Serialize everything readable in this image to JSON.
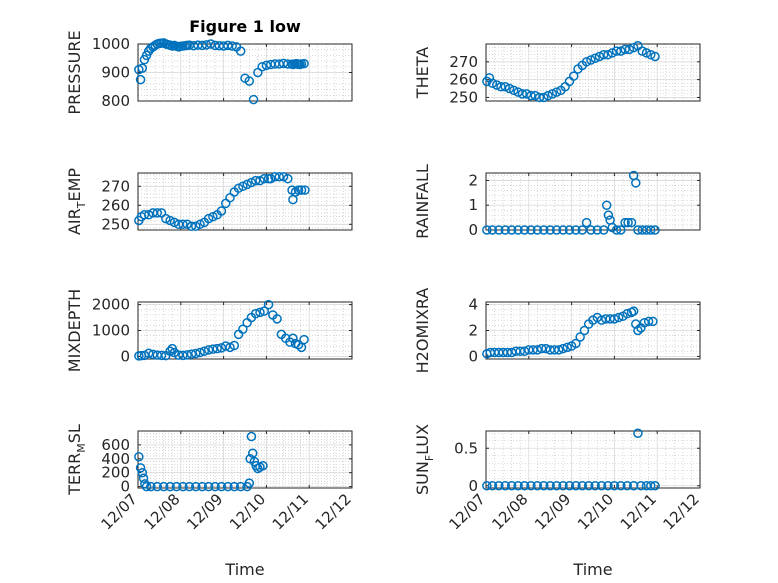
{
  "chart_data": [
    {
      "type": "scatter",
      "title": "Figure 1 low",
      "ylabel_main": "PRESSURE",
      "ylabel_sub": "",
      "ylabel_tail": "",
      "ylim": [
        800,
        1000
      ],
      "yticks": [
        800,
        900,
        1000
      ],
      "ytick_labels": [
        "800",
        "900",
        "1000"
      ],
      "xlim": [
        0,
        5
      ],
      "xticks": [
        0,
        1,
        2,
        3,
        4,
        5
      ],
      "xtick_labels": [],
      "xlabel": "",
      "grid": true,
      "x": [
        0.02,
        0.06,
        0.1,
        0.15,
        0.2,
        0.25,
        0.3,
        0.35,
        0.4,
        0.45,
        0.5,
        0.55,
        0.6,
        0.65,
        0.7,
        0.75,
        0.8,
        0.85,
        0.9,
        0.95,
        1.0,
        1.05,
        1.1,
        1.15,
        1.2,
        1.3,
        1.4,
        1.5,
        1.6,
        1.7,
        1.8,
        1.9,
        2.0,
        2.1,
        2.2,
        2.3,
        2.4,
        2.5,
        2.6,
        2.7,
        2.8,
        2.9,
        3.0,
        3.1,
        3.2,
        3.3,
        3.4,
        3.5,
        3.6,
        3.62,
        3.66,
        3.7,
        3.72,
        3.75,
        3.78,
        3.82,
        3.88
      ],
      "y": [
        910,
        875,
        915,
        945,
        960,
        975,
        985,
        990,
        995,
        1000,
        1002,
        1003,
        1004,
        1000,
        998,
        996,
        993,
        995,
        992,
        990,
        992,
        993,
        994,
        995,
        996,
        994,
        996,
        995,
        997,
        1000,
        995,
        994,
        993,
        995,
        993,
        990,
        975,
        880,
        870,
        805,
        900,
        920,
        925,
        928,
        930,
        930,
        932,
        930,
        929,
        928,
        930,
        931,
        929,
        930,
        928,
        930,
        931
      ]
    },
    {
      "type": "scatter",
      "title": "",
      "ylabel_main": "THETA",
      "ylabel_sub": "",
      "ylabel_tail": "",
      "ylim": [
        248,
        280
      ],
      "yticks": [
        250,
        260,
        270
      ],
      "ytick_labels": [
        "250",
        "260",
        "270"
      ],
      "xlim": [
        0,
        5
      ],
      "xticks": [
        0,
        1,
        2,
        3,
        4,
        5
      ],
      "xtick_labels": [],
      "xlabel": "",
      "grid": true,
      "x": [
        0.02,
        0.08,
        0.15,
        0.25,
        0.35,
        0.45,
        0.55,
        0.65,
        0.75,
        0.85,
        0.95,
        1.05,
        1.15,
        1.25,
        1.35,
        1.45,
        1.55,
        1.65,
        1.75,
        1.85,
        1.95,
        2.05,
        2.15,
        2.25,
        2.35,
        2.45,
        2.55,
        2.65,
        2.75,
        2.85,
        2.95,
        3.05,
        3.15,
        3.25,
        3.35,
        3.45,
        3.55,
        3.65,
        3.75,
        3.85,
        3.95
      ],
      "y": [
        259,
        261,
        258,
        257,
        256,
        256,
        255,
        254,
        253,
        252,
        252,
        251,
        251,
        250,
        250,
        251,
        252,
        253,
        254,
        256,
        259,
        262,
        266,
        268,
        270,
        271,
        272,
        273,
        274,
        274,
        275,
        276,
        276,
        277,
        277,
        278,
        279,
        276,
        275,
        274,
        273
      ]
    },
    {
      "type": "scatter",
      "title": "",
      "ylabel_main": "AIR",
      "ylabel_sub": "T",
      "ylabel_tail": "EMP",
      "ylim": [
        247,
        277
      ],
      "yticks": [
        250,
        260,
        270
      ],
      "ytick_labels": [
        "250",
        "260",
        "270"
      ],
      "xlim": [
        0,
        5
      ],
      "xticks": [
        0,
        1,
        2,
        3,
        4,
        5
      ],
      "xtick_labels": [],
      "xlabel": "",
      "grid": true,
      "x": [
        0.02,
        0.08,
        0.15,
        0.25,
        0.35,
        0.45,
        0.55,
        0.65,
        0.75,
        0.85,
        0.95,
        1.05,
        1.15,
        1.25,
        1.35,
        1.45,
        1.55,
        1.65,
        1.75,
        1.85,
        1.95,
        2.05,
        2.15,
        2.25,
        2.35,
        2.45,
        2.55,
        2.65,
        2.75,
        2.85,
        2.95,
        3.05,
        3.1,
        3.2,
        3.3,
        3.4,
        3.5,
        3.6,
        3.62,
        3.68,
        3.75,
        3.82,
        3.9
      ],
      "y": [
        252,
        254,
        255,
        255,
        256,
        256,
        256,
        253,
        252,
        251,
        250,
        250,
        250,
        249,
        249,
        250,
        251,
        253,
        254,
        255,
        257,
        261,
        264,
        267,
        269,
        270,
        271,
        272,
        273,
        273,
        274,
        274,
        274,
        275,
        275,
        275,
        274,
        268,
        263,
        267,
        268,
        268,
        268
      ]
    },
    {
      "type": "scatter",
      "title": "",
      "ylabel_main": "RAINFALL",
      "ylabel_sub": "",
      "ylabel_tail": "",
      "ylim": [
        0,
        2.3
      ],
      "yticks": [
        0,
        1,
        2
      ],
      "ytick_labels": [
        "0",
        "1",
        "2"
      ],
      "xlim": [
        0,
        5
      ],
      "xticks": [
        0,
        1,
        2,
        3,
        4,
        5
      ],
      "xtick_labels": [],
      "xlabel": "",
      "grid": true,
      "x": [
        0.02,
        0.15,
        0.3,
        0.45,
        0.6,
        0.75,
        0.9,
        1.05,
        1.2,
        1.35,
        1.5,
        1.65,
        1.8,
        1.95,
        2.1,
        2.25,
        2.35,
        2.45,
        2.6,
        2.75,
        2.82,
        2.86,
        2.9,
        2.95,
        3.05,
        3.15,
        3.25,
        3.32,
        3.4,
        3.45,
        3.5,
        3.55,
        3.65,
        3.75,
        3.85,
        3.95
      ],
      "y": [
        0,
        0,
        0,
        0,
        0,
        0,
        0,
        0,
        0,
        0,
        0,
        0,
        0,
        0,
        0,
        0,
        0.3,
        0,
        0,
        0,
        1.0,
        0.6,
        0.4,
        0.1,
        0,
        0,
        0.3,
        0.3,
        0.3,
        2.2,
        1.9,
        0,
        0,
        0,
        0,
        0
      ]
    },
    {
      "type": "scatter",
      "title": "",
      "ylabel_main": "MIXDEPTH",
      "ylabel_sub": "",
      "ylabel_tail": "",
      "ylim": [
        -100,
        2100
      ],
      "yticks": [
        0,
        1000,
        2000
      ],
      "ytick_labels": [
        "0",
        "1000",
        "2000"
      ],
      "xlim": [
        0,
        5
      ],
      "xticks": [
        0,
        1,
        2,
        3,
        4,
        5
      ],
      "xtick_labels": [],
      "xlabel": "",
      "grid": true,
      "x": [
        0.02,
        0.08,
        0.15,
        0.25,
        0.35,
        0.45,
        0.55,
        0.65,
        0.75,
        0.8,
        0.85,
        0.95,
        1.05,
        1.15,
        1.25,
        1.35,
        1.45,
        1.55,
        1.65,
        1.75,
        1.85,
        1.95,
        2.05,
        2.15,
        2.25,
        2.35,
        2.45,
        2.55,
        2.65,
        2.75,
        2.85,
        2.95,
        3.05,
        3.15,
        3.25,
        3.35,
        3.45,
        3.55,
        3.62,
        3.68,
        3.75,
        3.82,
        3.88
      ],
      "y": [
        20,
        30,
        40,
        120,
        80,
        50,
        40,
        30,
        200,
        300,
        150,
        50,
        40,
        60,
        90,
        110,
        150,
        200,
        250,
        280,
        300,
        330,
        400,
        350,
        420,
        850,
        1050,
        1300,
        1500,
        1650,
        1700,
        1750,
        2000,
        1600,
        1450,
        850,
        700,
        550,
        700,
        500,
        450,
        350,
        650
      ]
    },
    {
      "type": "scatter",
      "title": "",
      "ylabel_main": "H2OMIXRA",
      "ylabel_sub": "",
      "ylabel_tail": "",
      "ylim": [
        -0.2,
        4.2
      ],
      "yticks": [
        0,
        2,
        4
      ],
      "ytick_labels": [
        "0",
        "2",
        "4"
      ],
      "xlim": [
        0,
        5
      ],
      "xticks": [
        0,
        1,
        2,
        3,
        4,
        5
      ],
      "xtick_labels": [],
      "xlabel": "",
      "grid": true,
      "x": [
        0.02,
        0.1,
        0.2,
        0.3,
        0.4,
        0.5,
        0.6,
        0.7,
        0.8,
        0.9,
        1.0,
        1.1,
        1.2,
        1.3,
        1.4,
        1.5,
        1.6,
        1.7,
        1.8,
        1.9,
        2.0,
        2.1,
        2.2,
        2.3,
        2.4,
        2.5,
        2.6,
        2.7,
        2.8,
        2.9,
        3.0,
        3.1,
        3.2,
        3.3,
        3.4,
        3.45,
        3.5,
        3.55,
        3.62,
        3.7,
        3.8,
        3.9
      ],
      "y": [
        0.2,
        0.3,
        0.3,
        0.3,
        0.3,
        0.3,
        0.3,
        0.4,
        0.4,
        0.4,
        0.5,
        0.5,
        0.5,
        0.6,
        0.6,
        0.5,
        0.5,
        0.5,
        0.6,
        0.7,
        0.8,
        1.0,
        1.5,
        2.0,
        2.5,
        2.8,
        3.0,
        2.8,
        2.9,
        2.9,
        2.9,
        3.0,
        3.1,
        3.3,
        3.4,
        3.5,
        2.5,
        2.0,
        2.2,
        2.6,
        2.7,
        2.7
      ]
    },
    {
      "type": "scatter",
      "title": "",
      "ylabel_main": "TERR",
      "ylabel_sub": "M",
      "ylabel_tail": "SL",
      "ylim": [
        -20,
        800
      ],
      "yticks": [
        0,
        200,
        400,
        600
      ],
      "ytick_labels": [
        "0",
        "200",
        "400",
        "600"
      ],
      "xlim": [
        0,
        5
      ],
      "xticks": [
        0,
        1,
        2,
        3,
        4,
        5
      ],
      "xtick_labels": [
        "12/07",
        "12/08",
        "12/09",
        "12/10",
        "12/11",
        "12/12"
      ],
      "xlabel": "Time",
      "grid": true,
      "x": [
        0.02,
        0.06,
        0.1,
        0.13,
        0.16,
        0.2,
        0.3,
        0.45,
        0.6,
        0.75,
        0.9,
        1.05,
        1.2,
        1.35,
        1.5,
        1.65,
        1.8,
        1.95,
        2.1,
        2.25,
        2.4,
        2.55,
        2.6,
        2.62,
        2.65,
        2.68,
        2.72,
        2.76,
        2.8,
        2.85,
        2.92
      ],
      "y": [
        430,
        270,
        200,
        120,
        40,
        0,
        0,
        0,
        0,
        0,
        0,
        0,
        0,
        0,
        0,
        0,
        0,
        0,
        0,
        0,
        0,
        0,
        50,
        400,
        720,
        480,
        360,
        300,
        260,
        280,
        300
      ]
    },
    {
      "type": "scatter",
      "title": "",
      "ylabel_main": "SUN",
      "ylabel_sub": "F",
      "ylabel_tail": "LUX",
      "ylim": [
        -0.03,
        0.73
      ],
      "yticks": [
        0,
        0.5
      ],
      "ytick_labels": [
        "0",
        "0.5"
      ],
      "xlim": [
        0,
        5
      ],
      "xticks": [
        0,
        1,
        2,
        3,
        4,
        5
      ],
      "xtick_labels": [
        "12/07",
        "12/08",
        "12/09",
        "12/10",
        "12/11",
        "12/12"
      ],
      "xlabel": "Time",
      "grid": true,
      "x": [
        0.02,
        0.15,
        0.3,
        0.45,
        0.6,
        0.75,
        0.9,
        1.05,
        1.2,
        1.35,
        1.5,
        1.65,
        1.8,
        1.95,
        2.1,
        2.25,
        2.4,
        2.55,
        2.7,
        2.85,
        3.0,
        3.15,
        3.3,
        3.45,
        3.55,
        3.62,
        3.75,
        3.85,
        3.95
      ],
      "y": [
        0,
        0,
        0,
        0,
        0,
        0,
        0,
        0,
        0,
        0,
        0,
        0,
        0,
        0,
        0,
        0,
        0,
        0,
        0,
        0,
        0,
        0,
        0,
        0,
        0.7,
        0,
        0,
        0,
        0
      ]
    }
  ]
}
